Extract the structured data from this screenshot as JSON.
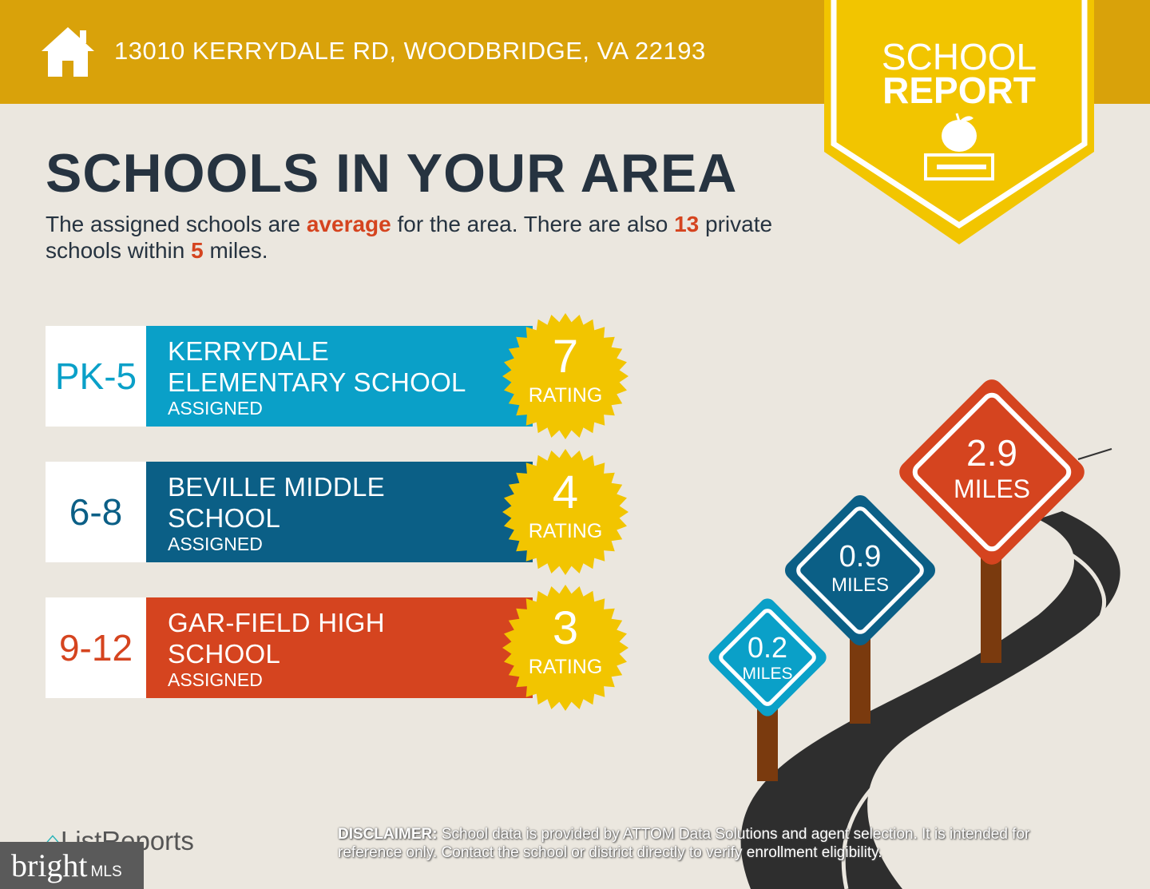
{
  "header": {
    "address": "13010 KERRYDALE RD, WOODBRIDGE, VA 22193",
    "icon": "home-icon"
  },
  "badge": {
    "line1": "SCHOOL",
    "line2": "REPORT",
    "icon": "apple-on-book-icon"
  },
  "title": "SCHOOLS IN YOUR AREA",
  "summary": {
    "part1": "The assigned schools are ",
    "quality": "average",
    "part2": " for the area. There are also ",
    "private_count": "13",
    "part3": " private schools within ",
    "radius": "5",
    "part4": " miles."
  },
  "schools": [
    {
      "grades": "PK-5",
      "name_line1": "KERRYDALE",
      "name_line2": "ELEMENTARY SCHOOL",
      "status": "ASSIGNED",
      "rating": "7",
      "rating_label": "RATING",
      "color": "#0aa0c8"
    },
    {
      "grades": "6-8",
      "name_line1": "BEVILLE MIDDLE",
      "name_line2": "SCHOOL",
      "status": "ASSIGNED",
      "rating": "4",
      "rating_label": "RATING",
      "color": "#0b5f86"
    },
    {
      "grades": "9-12",
      "name_line1": "GAR-FIELD HIGH",
      "name_line2": "SCHOOL",
      "status": "ASSIGNED",
      "rating": "3",
      "rating_label": "RATING",
      "color": "#d5441f"
    }
  ],
  "distances": [
    {
      "value": "0.2",
      "unit": "MILES",
      "color": "#0aa0c8"
    },
    {
      "value": "0.9",
      "unit": "MILES",
      "color": "#0b5f86"
    },
    {
      "value": "2.9",
      "unit": "MILES",
      "color": "#d5441f"
    }
  ],
  "footer": {
    "listreports": "ListReports",
    "bright": "bright",
    "mls": "MLS",
    "disclaimer_label": "DISCLAIMER:",
    "disclaimer": " School data is provided by ATTOM Data Solutions and agent selection. It is intended for reference only. Contact the school or district directly to verify enrollment eligibility."
  }
}
